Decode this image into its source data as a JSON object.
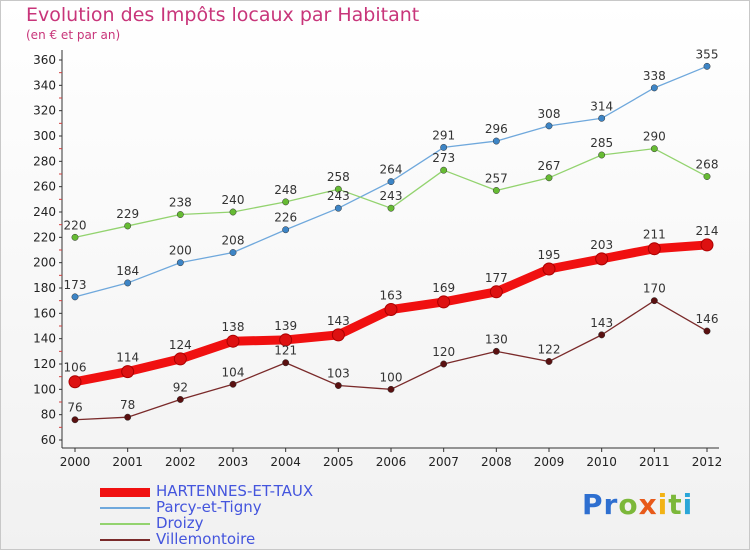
{
  "chart_data": {
    "type": "line",
    "title": "Evolution des Impôts locaux par Habitant",
    "subtitle": "(en € et par an)",
    "x": [
      "2000",
      "2001",
      "2002",
      "2003",
      "2004",
      "2005",
      "2006",
      "2007",
      "2008",
      "2009",
      "2010",
      "2011",
      "2012"
    ],
    "ylim": [
      60,
      360
    ],
    "yticks": [
      60,
      80,
      100,
      120,
      140,
      160,
      180,
      200,
      220,
      240,
      260,
      280,
      300,
      320,
      340,
      360
    ],
    "grid": false,
    "legend_position": "bottom-left",
    "series": [
      {
        "name": "HARTENNES-ET-TAUX",
        "color": "#f01010",
        "marker": "#dd1111",
        "values": [
          106,
          114,
          124,
          138,
          139,
          143,
          163,
          169,
          177,
          195,
          203,
          211,
          214
        ]
      },
      {
        "name": "Parcy-et-Tigny",
        "color": "#6fa8dc",
        "marker": "#3d85c6",
        "values": [
          173,
          184,
          200,
          208,
          226,
          243,
          264,
          291,
          296,
          308,
          314,
          338,
          355
        ]
      },
      {
        "name": "Droizy",
        "color": "#93d36f",
        "marker": "#66bb33",
        "values": [
          220,
          229,
          238,
          240,
          248,
          258,
          243,
          273,
          257,
          267,
          285,
          290,
          268
        ]
      },
      {
        "name": "Villemontoire",
        "color": "#7a2a2a",
        "marker": "#5a1010",
        "values": [
          76,
          78,
          92,
          104,
          121,
          103,
          100,
          120,
          130,
          122,
          143,
          170,
          146
        ]
      }
    ]
  },
  "brand": {
    "letters": [
      "P",
      "r",
      "o",
      "x",
      "i",
      "t",
      "i"
    ],
    "colors": [
      "#2e6fd0",
      "#2e6fd0",
      "#7cb83a",
      "#e85a1a",
      "#f2b315",
      "#7cb83a",
      "#2aa6d8"
    ]
  }
}
